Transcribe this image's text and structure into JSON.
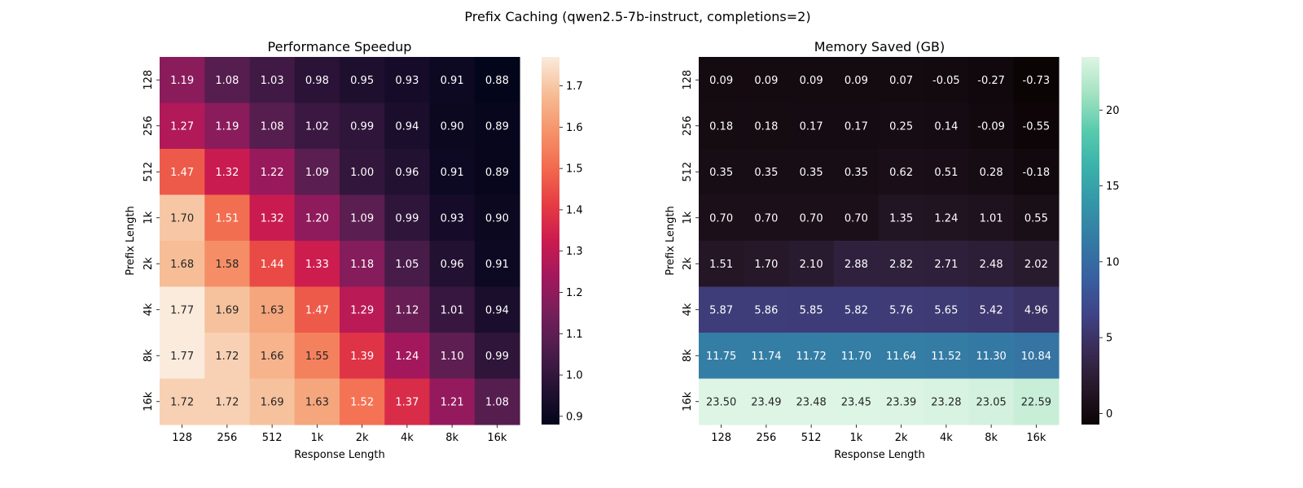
{
  "figure": {
    "suptitle": "Prefix Caching (qwen2.5-7b-instruct, completions=2)"
  },
  "chart_data": [
    {
      "type": "heatmap",
      "title": "Performance Speedup",
      "xlabel": "Response Length",
      "ylabel": "Prefix Length",
      "x_categories": [
        "128",
        "256",
        "512",
        "1k",
        "2k",
        "4k",
        "8k",
        "16k"
      ],
      "y_categories": [
        "128",
        "256",
        "512",
        "1k",
        "2k",
        "4k",
        "8k",
        "16k"
      ],
      "values": [
        [
          1.19,
          1.08,
          1.03,
          0.98,
          0.95,
          0.93,
          0.91,
          0.88
        ],
        [
          1.27,
          1.19,
          1.08,
          1.02,
          0.99,
          0.94,
          0.9,
          0.89
        ],
        [
          1.47,
          1.32,
          1.22,
          1.09,
          1.0,
          0.96,
          0.91,
          0.89
        ],
        [
          1.7,
          1.51,
          1.32,
          1.2,
          1.09,
          0.99,
          0.93,
          0.9
        ],
        [
          1.68,
          1.58,
          1.44,
          1.33,
          1.18,
          1.05,
          0.96,
          0.91
        ],
        [
          1.77,
          1.69,
          1.63,
          1.47,
          1.29,
          1.12,
          1.01,
          0.94
        ],
        [
          1.77,
          1.72,
          1.66,
          1.55,
          1.39,
          1.24,
          1.1,
          0.99
        ],
        [
          1.72,
          1.72,
          1.69,
          1.63,
          1.52,
          1.37,
          1.21,
          1.08
        ]
      ],
      "colormap": "rocket",
      "vmin": 0.88,
      "vmax": 1.77,
      "colorbar_ticks": [
        0.9,
        1.0,
        1.1,
        1.2,
        1.3,
        1.4,
        1.5,
        1.6,
        1.7
      ],
      "colorbar_tick_labels": [
        "0.9",
        "1.0",
        "1.1",
        "1.2",
        "1.3",
        "1.4",
        "1.5",
        "1.6",
        "1.7"
      ],
      "annotation_decimals": 2,
      "text_dark_color": "#262626",
      "text_light_color": "#ffffff"
    },
    {
      "type": "heatmap",
      "title": "Memory Saved (GB)",
      "xlabel": "Response Length",
      "ylabel": "Prefix Length",
      "x_categories": [
        "128",
        "256",
        "512",
        "1k",
        "2k",
        "4k",
        "8k",
        "16k"
      ],
      "y_categories": [
        "128",
        "256",
        "512",
        "1k",
        "2k",
        "4k",
        "8k",
        "16k"
      ],
      "values": [
        [
          0.09,
          0.09,
          0.09,
          0.09,
          0.07,
          -0.05,
          -0.27,
          -0.73
        ],
        [
          0.18,
          0.18,
          0.17,
          0.17,
          0.25,
          0.14,
          -0.09,
          -0.55
        ],
        [
          0.35,
          0.35,
          0.35,
          0.35,
          0.62,
          0.51,
          0.28,
          -0.18
        ],
        [
          0.7,
          0.7,
          0.7,
          0.7,
          1.35,
          1.24,
          1.01,
          0.55
        ],
        [
          1.51,
          1.7,
          2.1,
          2.88,
          2.82,
          2.71,
          2.48,
          2.02
        ],
        [
          5.87,
          5.86,
          5.85,
          5.82,
          5.76,
          5.65,
          5.42,
          4.96
        ],
        [
          11.75,
          11.74,
          11.72,
          11.7,
          11.64,
          11.52,
          11.3,
          10.84
        ],
        [
          23.5,
          23.49,
          23.48,
          23.45,
          23.39,
          23.28,
          23.05,
          22.59
        ]
      ],
      "colormap": "mako",
      "vmin": -0.73,
      "vmax": 23.5,
      "colorbar_ticks": [
        0,
        5,
        10,
        15,
        20
      ],
      "colorbar_tick_labels": [
        "0",
        "5",
        "10",
        "15",
        "20"
      ],
      "annotation_decimals": 2,
      "text_dark_color": "#262626",
      "text_light_color": "#ffffff"
    }
  ]
}
